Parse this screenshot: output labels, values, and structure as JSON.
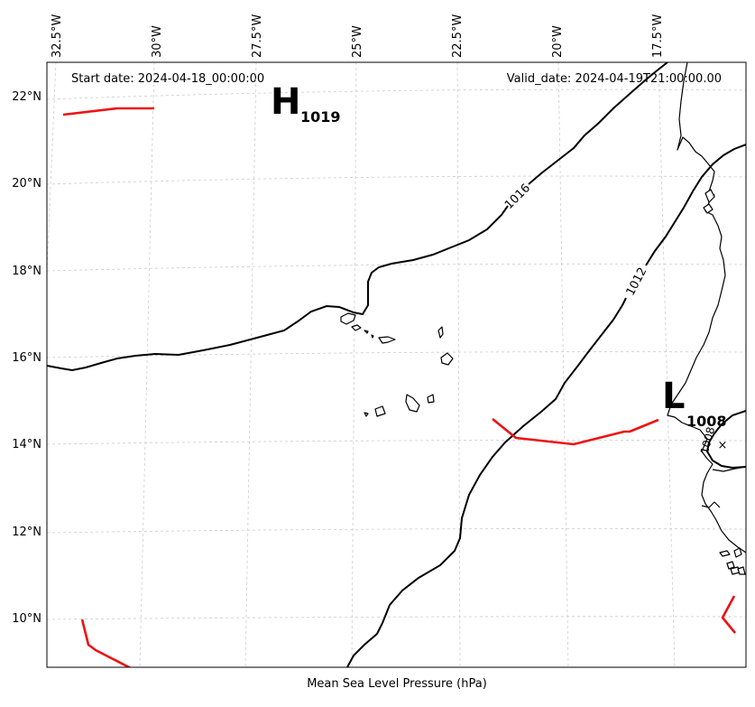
{
  "header": {
    "start_date": "Start date: 2024-04-18_00:00:00",
    "valid_date": "Valid_date: 2024-04-19T21:00:00.00"
  },
  "caption": "Mean Sea Level Pressure (hPa)",
  "axes": {
    "lon_labels": [
      "32.5°W",
      "30°W",
      "27.5°W",
      "25°W",
      "22.5°W",
      "20°W",
      "17.5°W"
    ],
    "lat_labels": [
      "22°N",
      "20°N",
      "18°N",
      "16°N",
      "14°N",
      "12°N",
      "10°N"
    ]
  },
  "isobars": [
    {
      "level": 1016,
      "label": "1016"
    },
    {
      "level": 1012,
      "label": "1012"
    },
    {
      "level": 1008,
      "label": "1008"
    }
  ],
  "pressure_centers": [
    {
      "type": "high",
      "symbol": "H",
      "value": "1019"
    },
    {
      "type": "low",
      "symbol": "L",
      "value": "1008"
    }
  ],
  "low_marker": "×",
  "colors": {
    "isobar": "#000000",
    "front": "#ee1111",
    "grid": "#cccccc",
    "frame": "#000000"
  }
}
